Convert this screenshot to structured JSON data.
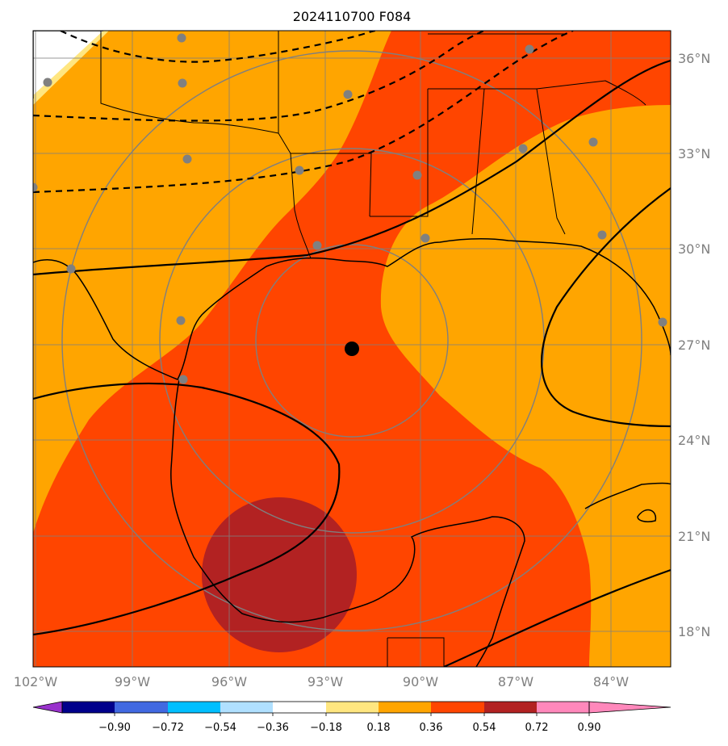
{
  "title": "2024110700 F084",
  "map": {
    "lat_labels": [
      "36°N",
      "33°N",
      "30°N",
      "27°N",
      "24°N",
      "21°N",
      "18°N"
    ],
    "lon_labels": [
      "102°W",
      "99°W",
      "96°W",
      "93°W",
      "90°W",
      "87°W",
      "84°W"
    ],
    "center_marker": "storm-center",
    "colors": {
      "fill_light": "#ffa500",
      "fill_mid": "#ff4500",
      "fill_dark": "#b22222",
      "fill_pale": "#ffe680",
      "grid": "#7f7f7f",
      "station": "#808080",
      "contour": "#000000"
    }
  },
  "colorbar": {
    "labels": [
      "−0.90",
      "−0.72",
      "−0.54",
      "−0.36",
      "−0.18",
      "0.18",
      "0.36",
      "0.54",
      "0.72",
      "0.90"
    ],
    "colors": [
      "#9932cc",
      "#00008b",
      "#4169e1",
      "#00bfff",
      "#b0e0ff",
      "#ffffff",
      "#ffe680",
      "#ffa500",
      "#ff4500",
      "#b22222",
      "#ff88bb"
    ]
  }
}
